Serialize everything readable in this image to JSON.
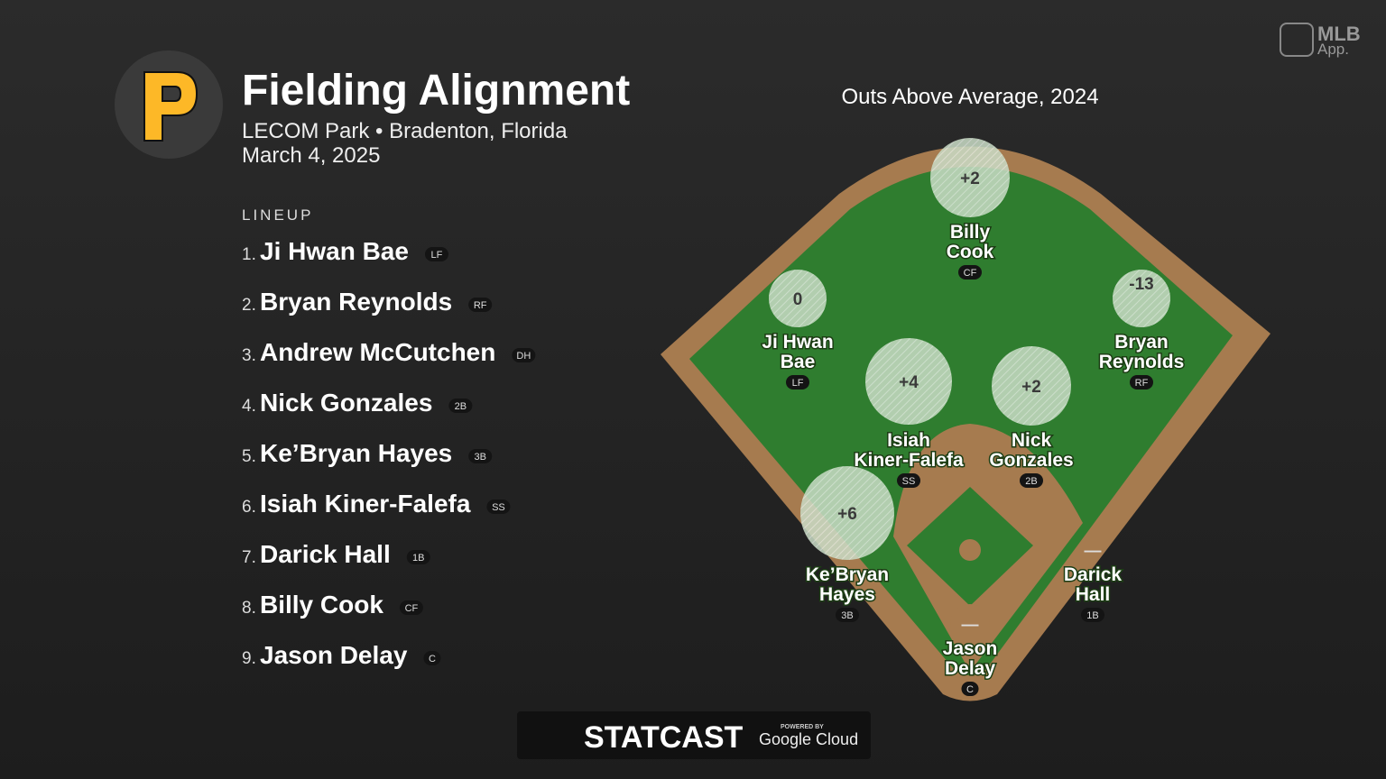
{
  "header": {
    "title": "Fielding Alignment",
    "venue": "LECOM Park • Bradenton, Florida",
    "date": "March 4, 2025"
  },
  "brand": {
    "mlb": "MLB",
    "app": "App."
  },
  "lineup": {
    "heading": "LINEUP",
    "players": [
      {
        "order": "1.",
        "name": "Ji Hwan Bae",
        "position": "LF"
      },
      {
        "order": "2.",
        "name": "Bryan Reynolds",
        "position": "RF"
      },
      {
        "order": "3.",
        "name": "Andrew McCutchen",
        "position": "DH"
      },
      {
        "order": "4.",
        "name": "Nick Gonzales",
        "position": "2B"
      },
      {
        "order": "5.",
        "name": "Ke’Bryan Hayes",
        "position": "3B"
      },
      {
        "order": "6.",
        "name": "Isiah Kiner-Falefa",
        "position": "SS"
      },
      {
        "order": "7.",
        "name": "Darick Hall",
        "position": "1B"
      },
      {
        "order": "8.",
        "name": "Billy Cook",
        "position": "CF"
      },
      {
        "order": "9.",
        "name": "Jason Delay",
        "position": "C"
      }
    ]
  },
  "field": {
    "title": "Outs Above Average, 2024",
    "players": [
      {
        "name_lines": [
          "Billy",
          "Cook"
        ],
        "position": "CF",
        "oaa": "+2"
      },
      {
        "name_lines": [
          "Ji Hwan",
          "Bae"
        ],
        "position": "LF",
        "oaa": "0"
      },
      {
        "name_lines": [
          "Bryan",
          "Reynolds"
        ],
        "position": "RF",
        "oaa": "-13"
      },
      {
        "name_lines": [
          "Isiah",
          "Kiner-Falefa"
        ],
        "position": "SS",
        "oaa": "+4"
      },
      {
        "name_lines": [
          "Nick",
          "Gonzales"
        ],
        "position": "2B",
        "oaa": "+2"
      },
      {
        "name_lines": [
          "Ke’Bryan",
          "Hayes"
        ],
        "position": "3B",
        "oaa": "+6"
      },
      {
        "name_lines": [
          "Darick",
          "Hall"
        ],
        "position": "1B",
        "oaa": "—"
      },
      {
        "name_lines": [
          "Jason",
          "Delay"
        ],
        "position": "C",
        "oaa": "—"
      }
    ]
  },
  "footer": {
    "statcast": "STATCAST",
    "powered_by": "POWERED BY",
    "cloud": "Google Cloud"
  }
}
